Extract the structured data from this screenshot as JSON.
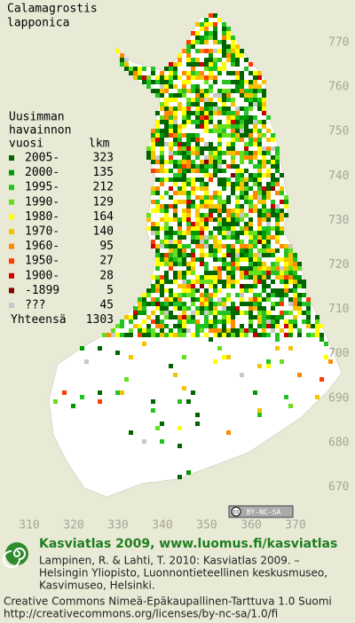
{
  "map": {
    "title_lines": [
      "Calamagrostis",
      "lapponica"
    ],
    "legend_heading": [
      "Uusimman",
      "havainnon",
      "vuosi",
      "lkm"
    ],
    "legend": [
      {
        "label": "2005-",
        "count": 323,
        "color": "#006400"
      },
      {
        "label": "2000-",
        "count": 135,
        "color": "#009a00"
      },
      {
        "label": "1995-",
        "count": 212,
        "color": "#22c322"
      },
      {
        "label": "1990-",
        "count": 129,
        "color": "#66e01c"
      },
      {
        "label": "1980-",
        "count": 164,
        "color": "#ffff00"
      },
      {
        "label": "1970-",
        "count": 140,
        "color": "#f5c400"
      },
      {
        "label": "1960-",
        "count": 95,
        "color": "#ff8a00"
      },
      {
        "label": "1950-",
        "count": 27,
        "color": "#ff3c00"
      },
      {
        "label": "1900-",
        "count": 28,
        "color": "#cc0000"
      },
      {
        "label": "-1899",
        "count": 5,
        "color": "#800000"
      },
      {
        "label": "???",
        "count": 45,
        "color": "#c8c8c8"
      }
    ],
    "total_label": "Yhteensä",
    "total": 1303,
    "xlim": [
      310,
      370
    ],
    "xticks": [
      310,
      320,
      330,
      340,
      350,
      360,
      370
    ],
    "ylim": [
      670,
      770
    ],
    "yticks": [
      670,
      680,
      690,
      700,
      710,
      720,
      730,
      740,
      750,
      760,
      770
    ],
    "license_badge": [
      "cc",
      "BY-NC-SA"
    ],
    "footer": {
      "heading": "Kasviatlas 2009, www.luomus.fi/kasviatlas",
      "citation": [
        "Lampinen, R. & Lahti, T. 2010: Kasviatlas 2009. –",
        "Helsingin Yliopisto, Luonnontieteellinen keskusmuseo,",
        "Kasvimuseo, Helsinki."
      ],
      "license": [
        "Creative Commons Nimeä-Epäkaupallinen-Tarttuva 1.0 Suomi",
        "http://creativecommons.org/licenses/by-nc-sa/1.0/fi"
      ]
    }
  }
}
